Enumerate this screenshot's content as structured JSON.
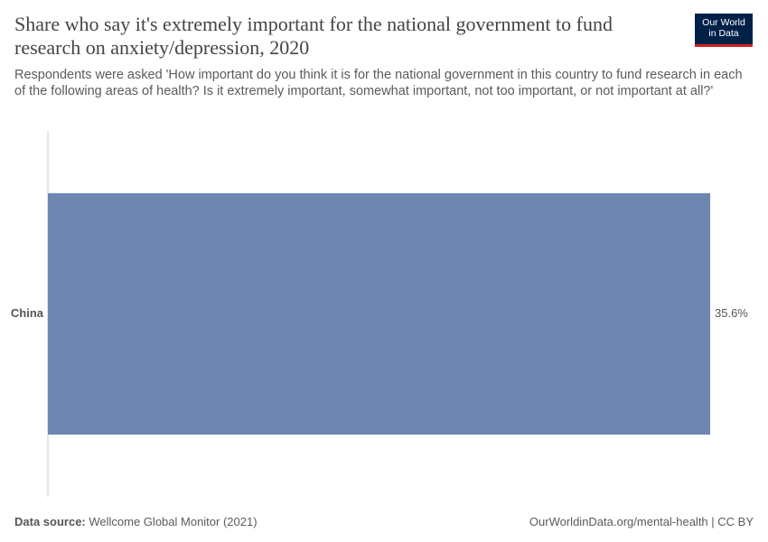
{
  "chart_data": {
    "type": "bar",
    "orientation": "horizontal",
    "title": "Share who say it's extremely important for the national government to fund research on anxiety/depression, 2020",
    "subtitle": "Respondents were asked 'How important do you think it is for the national government in this country to fund research in each of the following areas of health? Is it extremely important, somewhat important, not too important, or not important at all?'",
    "categories": [
      "China"
    ],
    "values": [
      35.6
    ],
    "value_labels": [
      "35.6%"
    ],
    "color": "#6d87b0",
    "source_label": "Data source:",
    "source": "Wellcome Global Monitor (2021)",
    "footer_right": "OurWorldinData.org/mental-health | CC BY",
    "logo": [
      "Our World",
      "in Data"
    ]
  }
}
